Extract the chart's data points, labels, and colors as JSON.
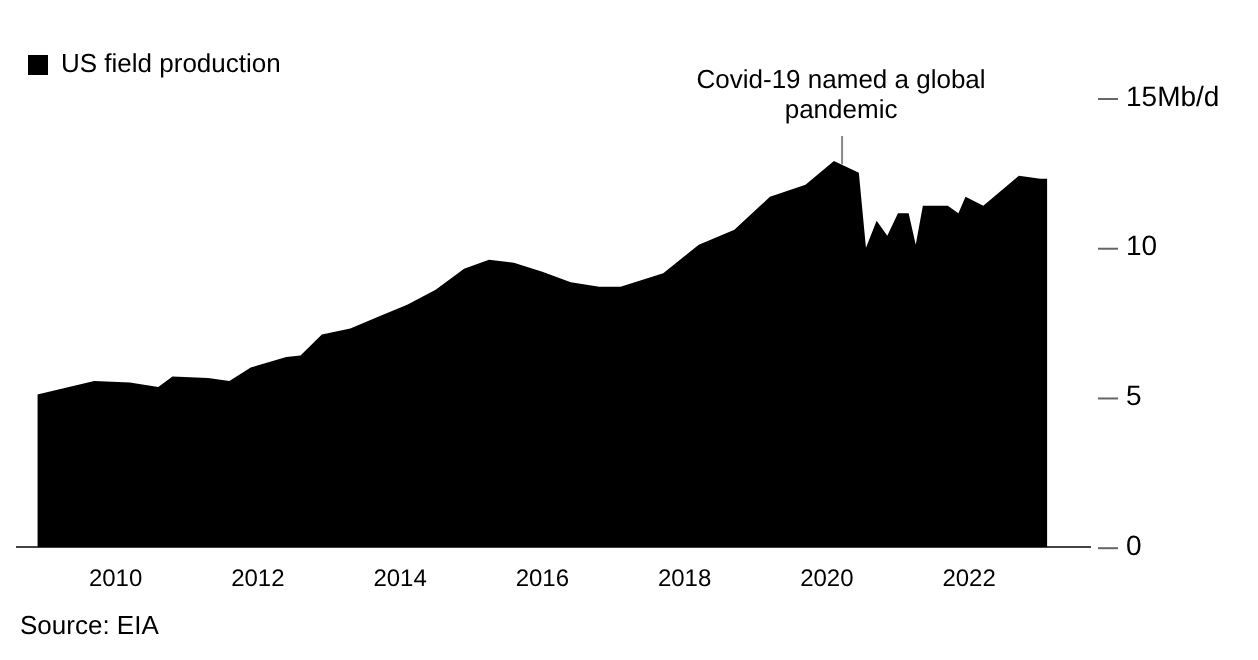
{
  "chart_data": {
    "type": "area",
    "x": [
      2008.9,
      2009.7,
      2010.2,
      2010.6,
      2010.8,
      2011.3,
      2011.6,
      2011.9,
      2012.4,
      2012.6,
      2012.9,
      2013.3,
      2013.7,
      2014.1,
      2014.5,
      2014.9,
      2015.25,
      2015.6,
      2016.0,
      2016.4,
      2016.8,
      2017.1,
      2017.7,
      2018.2,
      2018.7,
      2019.2,
      2019.7,
      2020.1,
      2020.45,
      2020.55,
      2020.7,
      2020.85,
      2021.0,
      2021.15,
      2021.25,
      2021.35,
      2021.7,
      2021.85,
      2021.95,
      2022.2,
      2022.7,
      2023.0,
      2023.1
    ],
    "series": [
      {
        "name": "US field production",
        "color": "#000000",
        "values": [
          5.1,
          5.55,
          5.5,
          5.35,
          5.7,
          5.65,
          5.55,
          6.0,
          6.35,
          6.4,
          7.1,
          7.3,
          7.7,
          8.1,
          8.6,
          9.3,
          9.6,
          9.5,
          9.2,
          8.85,
          8.7,
          8.7,
          9.15,
          10.1,
          10.6,
          11.7,
          12.1,
          12.9,
          12.5,
          10.0,
          10.9,
          10.4,
          11.15,
          11.15,
          10.1,
          11.4,
          11.4,
          11.15,
          11.7,
          11.4,
          12.4,
          12.3,
          12.3
        ]
      }
    ],
    "xlim": [
      2008.6,
      2023.7
    ],
    "xticks": [
      2010,
      2012,
      2014,
      2016,
      2018,
      2020,
      2022
    ],
    "ylim": [
      0,
      15
    ],
    "yticks": [
      0,
      5,
      10,
      {
        "value": 15,
        "label": "15Mb/d"
      }
    ],
    "grid": false,
    "legend": "top left",
    "ref_lines": [
      {
        "axis": "x",
        "value": 2020.2,
        "label": "Covid-19 named a global pandemic",
        "color": "#888888"
      }
    ],
    "annotations": [
      "Source: EIA"
    ]
  }
}
